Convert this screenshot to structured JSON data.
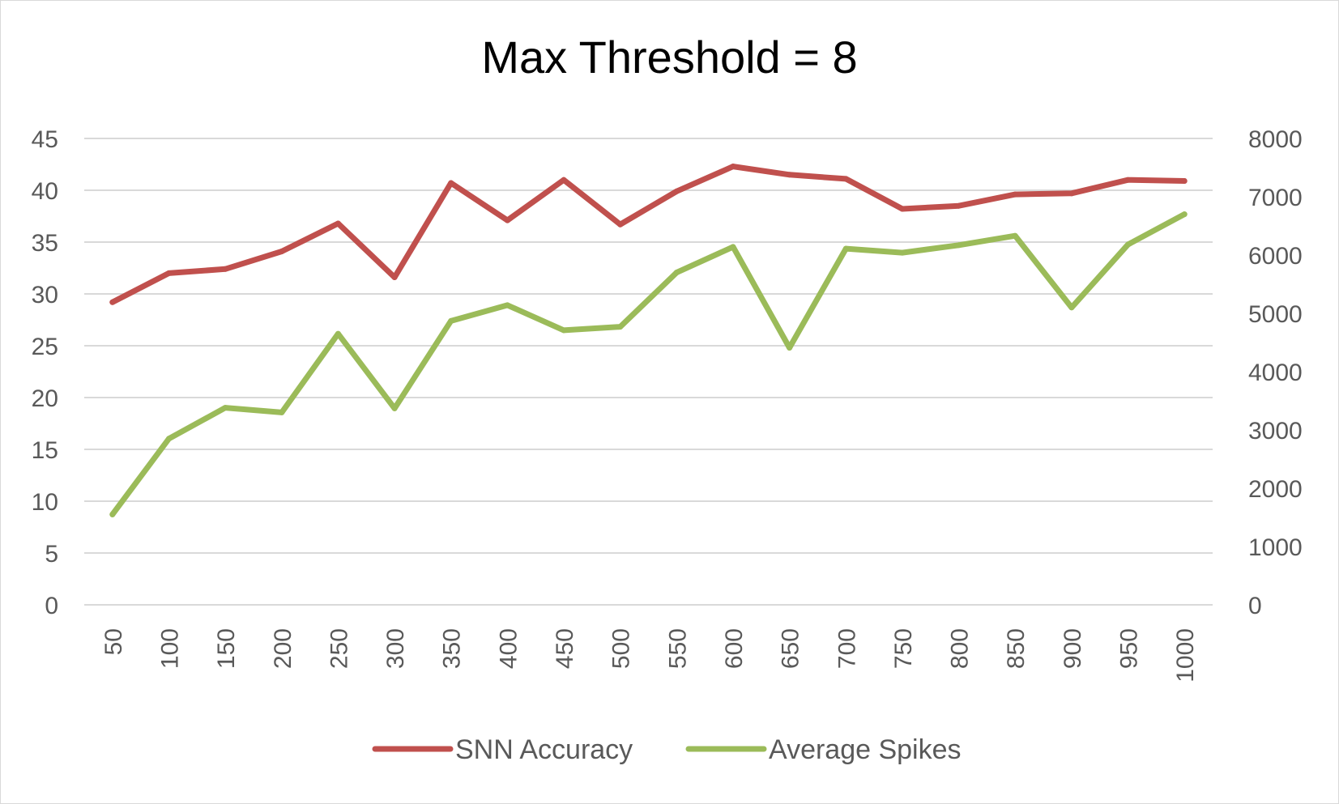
{
  "chart_data": {
    "type": "line",
    "title": "Max Threshold = 8",
    "categories": [
      "50",
      "100",
      "150",
      "200",
      "250",
      "300",
      "350",
      "400",
      "450",
      "500",
      "550",
      "600",
      "650",
      "700",
      "750",
      "800",
      "850",
      "900",
      "950",
      "1000"
    ],
    "y_left": {
      "min": 0,
      "max": 45,
      "ticks": [
        "0",
        "5",
        "10",
        "15",
        "20",
        "25",
        "30",
        "35",
        "40",
        "45"
      ]
    },
    "y_right": {
      "min": 0,
      "max": 8000,
      "ticks": [
        "0",
        "1000",
        "2000",
        "3000",
        "4000",
        "5000",
        "6000",
        "7000",
        "8000"
      ]
    },
    "grid": true,
    "legend_position": "bottom",
    "series": [
      {
        "name": "SNN Accuracy",
        "axis": "left",
        "color": "#c0504d",
        "values": [
          29.2,
          32.0,
          32.4,
          34.1,
          36.8,
          31.6,
          40.7,
          37.1,
          41.0,
          36.7,
          39.9,
          42.3,
          41.5,
          41.1,
          38.2,
          38.5,
          39.6,
          39.7,
          41.0,
          40.9
        ]
      },
      {
        "name": "Average Spikes",
        "axis": "right",
        "color": "#9bbb59",
        "values": [
          1550,
          2850,
          3380,
          3300,
          4650,
          3370,
          4870,
          5140,
          4710,
          4770,
          5700,
          6140,
          4410,
          6110,
          6040,
          6170,
          6330,
          5100,
          6180,
          6700
        ]
      }
    ]
  }
}
